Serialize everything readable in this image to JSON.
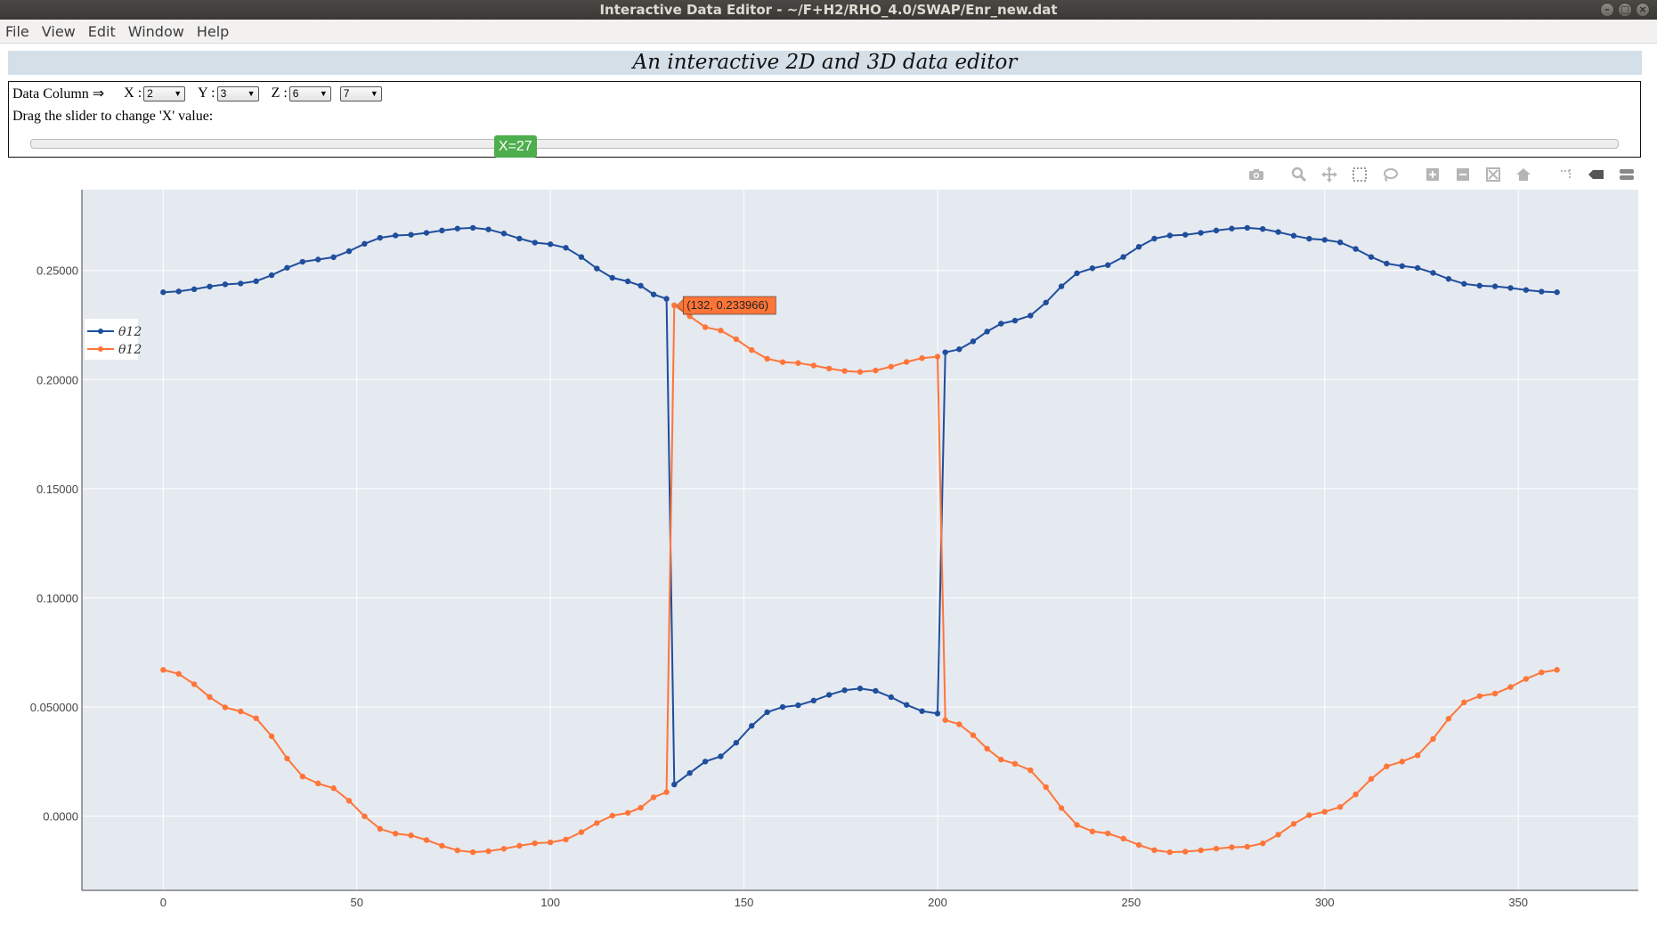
{
  "window": {
    "title": "Interactive Data Editor - ~/F+H2/RHO_4.0/SWAP/Enr_new.dat"
  },
  "menu": [
    "File",
    "View",
    "Edit",
    "Window",
    "Help"
  ],
  "heading": "An interactive 2D and 3D data editor",
  "controls": {
    "data_column_label": "Data Column ⇒",
    "x_label": "X :",
    "x_value": "2",
    "y_label": "Y :",
    "y_value": "3",
    "z_label": "Z :",
    "z_value": "6",
    "extra_value": "7",
    "slider_hint": "Drag the slider to change 'X' value:",
    "slider_label": "X=27",
    "slider_fraction": 0.3
  },
  "modebar": [
    "camera-icon",
    "zoom-icon",
    "pan-icon",
    "box-select-icon",
    "lasso-select-icon",
    "zoom-in-icon",
    "zoom-out-icon",
    "autoscale-icon",
    "reset-axes-icon",
    "spike-lines-icon",
    "hover-closest-icon",
    "hover-compare-icon"
  ],
  "colors": {
    "series1": "#1f4e9c",
    "series2": "#ff7538",
    "plot_bg": "#e5e9f0",
    "grid": "#ffffff",
    "slider": "#4cae4c"
  },
  "chart_data": {
    "type": "line",
    "xlim": [
      -21,
      381
    ],
    "ylim": [
      -0.034,
      0.287
    ],
    "xticks": [
      0,
      50,
      100,
      150,
      200,
      250,
      300,
      350
    ],
    "xtick_labels": [
      "0",
      "50",
      "100",
      "150",
      "200",
      "250",
      "300",
      "350"
    ],
    "yticks": [
      0,
      0.05,
      0.1,
      0.15,
      0.2,
      0.25
    ],
    "ytick_labels": [
      "0.0000",
      "0.050000",
      "0.10000",
      "0.15000",
      "0.20000",
      "0.25000"
    ],
    "legend_position": "left",
    "series": [
      {
        "name": "θ12",
        "color": "#1f4e9c",
        "x": [
          0,
          20,
          40,
          60,
          80,
          100,
          120,
          130,
          132,
          140,
          160,
          180,
          200,
          202,
          220,
          240,
          260,
          280,
          300,
          320,
          340,
          360
        ],
        "y": [
          0.24,
          0.244,
          0.255,
          0.266,
          0.2695,
          0.262,
          0.245,
          0.237,
          0.0145,
          0.025,
          0.05,
          0.0585,
          0.047,
          0.2125,
          0.227,
          0.251,
          0.266,
          0.2695,
          0.264,
          0.252,
          0.243,
          0.24
        ]
      },
      {
        "name": "θ12",
        "color": "#ff7538",
        "x": [
          0,
          20,
          40,
          60,
          80,
          100,
          120,
          130,
          132,
          140,
          160,
          180,
          200,
          202,
          220,
          240,
          260,
          280,
          300,
          320,
          340,
          360
        ],
        "y": [
          0.067,
          0.048,
          0.015,
          -0.008,
          -0.0165,
          -0.012,
          0.0015,
          0.011,
          0.234,
          0.224,
          0.208,
          0.2035,
          0.2105,
          0.044,
          0.024,
          -0.007,
          -0.0165,
          -0.014,
          0.002,
          0.025,
          0.055,
          0.067
        ]
      }
    ],
    "annotation": {
      "text": "(132,  0.233966)",
      "x": 132,
      "y": 0.233966
    }
  }
}
